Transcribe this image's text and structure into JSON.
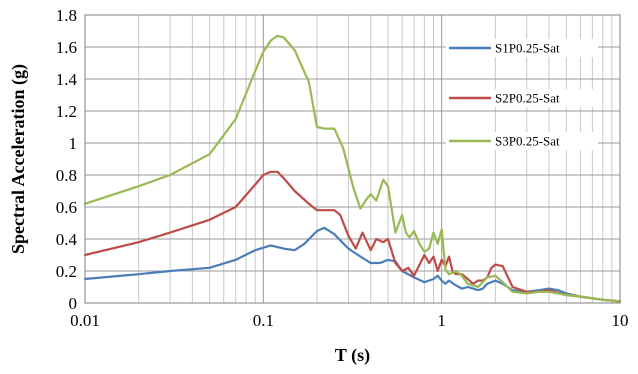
{
  "chart_data": {
    "type": "line",
    "xscale": "log",
    "xlim": [
      0.01,
      10
    ],
    "ylim": [
      0,
      1.8
    ],
    "xlabel": "T (s)",
    "ylabel": "Spectral Acceleration (g)",
    "x_ticks": [
      0.01,
      0.1,
      1,
      10
    ],
    "x_tick_labels": [
      "0.01",
      "0.1",
      "1",
      "10"
    ],
    "y_ticks": [
      0,
      0.2,
      0.4,
      0.6,
      0.8,
      1,
      1.2,
      1.4,
      1.6,
      1.8
    ],
    "y_tick_labels": [
      "0",
      "0.2",
      "0.4",
      "0.6",
      "0.8",
      "1",
      "1.2",
      "1.4",
      "1.6",
      "1.8"
    ],
    "grid": true,
    "legend_position": "right",
    "series": [
      {
        "name": "S1P0.25-Sat",
        "color": "#4a7ebb",
        "x": [
          0.01,
          0.02,
          0.03,
          0.05,
          0.07,
          0.09,
          0.11,
          0.13,
          0.15,
          0.17,
          0.2,
          0.22,
          0.25,
          0.3,
          0.35,
          0.4,
          0.45,
          0.5,
          0.55,
          0.6,
          0.7,
          0.8,
          0.9,
          0.95,
          1.0,
          1.05,
          1.1,
          1.2,
          1.3,
          1.4,
          1.5,
          1.6,
          1.7,
          1.8,
          2.0,
          2.2,
          2.5,
          3.0,
          3.5,
          4.0,
          4.5,
          5.0,
          6.0,
          7.0,
          8.0,
          10.0
        ],
        "y": [
          0.15,
          0.18,
          0.2,
          0.22,
          0.27,
          0.33,
          0.36,
          0.34,
          0.33,
          0.37,
          0.45,
          0.47,
          0.43,
          0.34,
          0.29,
          0.25,
          0.25,
          0.27,
          0.26,
          0.2,
          0.16,
          0.13,
          0.15,
          0.17,
          0.14,
          0.12,
          0.14,
          0.11,
          0.09,
          0.1,
          0.09,
          0.08,
          0.09,
          0.12,
          0.14,
          0.12,
          0.08,
          0.07,
          0.08,
          0.09,
          0.08,
          0.06,
          0.04,
          0.03,
          0.02,
          0.01
        ]
      },
      {
        "name": "S2P0.25-Sat",
        "color": "#be4b48",
        "x": [
          0.01,
          0.02,
          0.03,
          0.05,
          0.07,
          0.09,
          0.1,
          0.11,
          0.12,
          0.13,
          0.15,
          0.18,
          0.2,
          0.22,
          0.25,
          0.27,
          0.3,
          0.33,
          0.36,
          0.4,
          0.43,
          0.47,
          0.5,
          0.55,
          0.6,
          0.65,
          0.7,
          0.8,
          0.85,
          0.9,
          0.95,
          1.0,
          1.05,
          1.1,
          1.15,
          1.2,
          1.3,
          1.4,
          1.5,
          1.6,
          1.7,
          1.8,
          1.9,
          2.0,
          2.2,
          2.5,
          3.0,
          3.5,
          4.0,
          5.0,
          6.0,
          8.0,
          10.0
        ],
        "y": [
          0.3,
          0.38,
          0.44,
          0.52,
          0.6,
          0.74,
          0.8,
          0.82,
          0.82,
          0.78,
          0.7,
          0.62,
          0.58,
          0.58,
          0.58,
          0.55,
          0.42,
          0.34,
          0.44,
          0.33,
          0.4,
          0.38,
          0.4,
          0.25,
          0.2,
          0.22,
          0.17,
          0.3,
          0.25,
          0.29,
          0.2,
          0.27,
          0.23,
          0.29,
          0.2,
          0.18,
          0.18,
          0.15,
          0.12,
          0.14,
          0.14,
          0.16,
          0.22,
          0.24,
          0.23,
          0.1,
          0.07,
          0.07,
          0.08,
          0.05,
          0.04,
          0.02,
          0.01
        ]
      },
      {
        "name": "S3P0.25-Sat",
        "color": "#98b954",
        "x": [
          0.01,
          0.02,
          0.03,
          0.05,
          0.07,
          0.09,
          0.1,
          0.11,
          0.12,
          0.13,
          0.15,
          0.18,
          0.2,
          0.22,
          0.25,
          0.28,
          0.32,
          0.35,
          0.38,
          0.4,
          0.43,
          0.47,
          0.5,
          0.55,
          0.6,
          0.63,
          0.66,
          0.7,
          0.75,
          0.8,
          0.85,
          0.9,
          0.95,
          1.0,
          1.05,
          1.1,
          1.2,
          1.3,
          1.4,
          1.5,
          1.6,
          1.8,
          2.0,
          2.2,
          2.5,
          3.0,
          3.5,
          4.0,
          5.0,
          6.0,
          8.0,
          10.0
        ],
        "y": [
          0.62,
          0.73,
          0.8,
          0.93,
          1.15,
          1.45,
          1.57,
          1.64,
          1.67,
          1.66,
          1.58,
          1.38,
          1.1,
          1.09,
          1.09,
          0.97,
          0.72,
          0.59,
          0.65,
          0.68,
          0.64,
          0.77,
          0.73,
          0.44,
          0.55,
          0.44,
          0.41,
          0.45,
          0.37,
          0.32,
          0.34,
          0.44,
          0.37,
          0.46,
          0.21,
          0.18,
          0.2,
          0.17,
          0.12,
          0.11,
          0.1,
          0.16,
          0.17,
          0.13,
          0.07,
          0.06,
          0.07,
          0.07,
          0.05,
          0.04,
          0.02,
          0.01
        ]
      }
    ]
  }
}
